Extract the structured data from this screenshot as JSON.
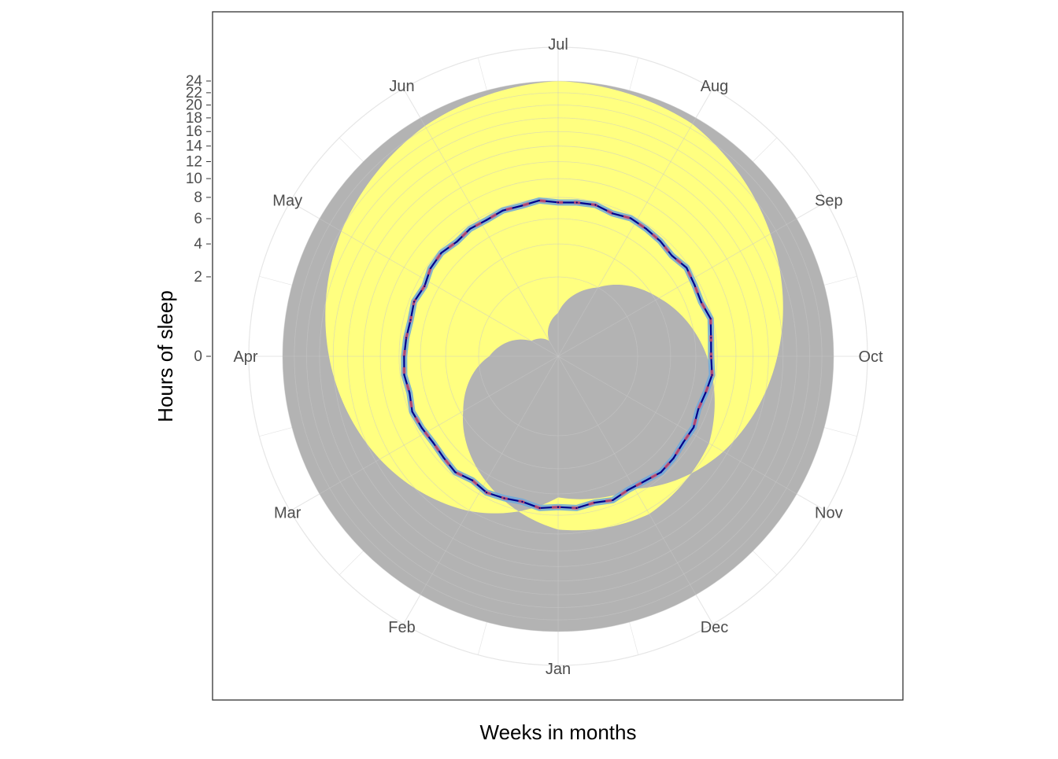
{
  "chart_data": {
    "type": "polar-area-line",
    "title": "",
    "xlabel": "Weeks in months",
    "ylabel": "Hours of sleep",
    "months": [
      "Jan",
      "Feb",
      "Mar",
      "Apr",
      "May",
      "Jun",
      "Jul",
      "Aug",
      "Sep",
      "Oct",
      "Nov",
      "Dec"
    ],
    "y_ticks": [
      0,
      2,
      4,
      6,
      8,
      10,
      12,
      14,
      16,
      18,
      20,
      22,
      24
    ],
    "y_scale": "sqrt",
    "ylim": [
      0,
      24
    ],
    "grid": true,
    "colors": {
      "night": "#b3b3b3",
      "daylight": "#ffff80",
      "sleep_band": "#6fa8dc",
      "sleep_line": "#00008b",
      "sleep_dashed": "#e05a6a",
      "grid_outer": "#e6e6e6",
      "grid_inner": "#c8c8c8",
      "panel_border": "#333333"
    },
    "series": [
      {
        "name": "",
        "kind": "area",
        "description_role": "daylight band",
        "start_month": 1,
        "end_month": 13,
        "sunrise_hours": [
          9.5,
          6.6,
          3.8,
          1.5,
          0.3,
          0.1,
          0.6,
          2.0,
          4.3,
          7.0,
          9.6,
          10.5,
          9.5
        ],
        "sunset_hours": [
          6.3,
          10.1,
          13.4,
          16.6,
          19.8,
          22.4,
          24.0,
          22.8,
          19.0,
          15.2,
          11.5,
          7.4,
          6.3
        ]
      },
      {
        "name": "",
        "kind": "line",
        "description_role": "hours of sleep per week",
        "weeks": 53,
        "values": [
          7.2,
          7.4,
          7.1,
          7.3,
          7.5,
          7.2,
          7.6,
          7.4,
          7.3,
          7.5,
          7.7,
          7.4,
          7.6,
          7.5,
          7.4,
          7.3,
          7.5,
          7.2,
          7.6,
          7.7,
          7.4,
          7.6,
          7.5,
          7.7,
          7.6,
          7.8,
          7.5,
          7.6,
          7.7,
          7.4,
          7.7,
          7.6,
          7.5,
          7.3,
          7.7,
          7.5,
          7.4,
          7.8,
          7.5,
          7.4,
          7.6,
          7.3,
          7.1,
          7.4,
          7.3,
          7.5,
          7.6,
          7.3,
          7.2,
          7.5,
          7.2,
          7.4,
          7.2
        ]
      }
    ]
  }
}
